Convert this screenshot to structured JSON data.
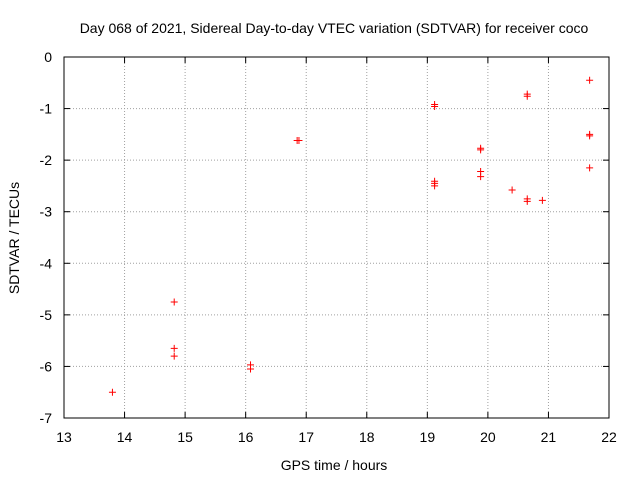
{
  "chart_data": {
    "type": "scatter",
    "title": "Day 068 of 2021, Sidereal Day-to-day VTEC variation (SDTVAR) for receiver coco",
    "xlabel": "GPS time / hours",
    "ylabel": "SDTVAR / TECUs",
    "xlim": [
      13,
      22
    ],
    "ylim": [
      -7,
      0
    ],
    "xticks": [
      13,
      14,
      15,
      16,
      17,
      18,
      19,
      20,
      21,
      22
    ],
    "yticks": [
      0,
      -1,
      -2,
      -3,
      -4,
      -5,
      -6,
      -7
    ],
    "xtick_labels": [
      "13",
      "14",
      "15",
      "16",
      "17",
      "18",
      "19",
      "20",
      "21",
      "22"
    ],
    "ytick_labels": [
      "0",
      "-1",
      "-2",
      "-3",
      "-4",
      "-5",
      "-6",
      "-7"
    ],
    "grid": true,
    "marker": "+",
    "colors": {
      "points": "#ff0000",
      "grid": "#a0a0a0",
      "axes": "#000000"
    },
    "series": [
      {
        "name": "SDTVAR",
        "x": [
          13.8,
          14.82,
          14.82,
          14.82,
          16.08,
          16.08,
          16.85,
          16.88,
          19.12,
          19.12,
          19.12,
          19.12,
          19.12,
          19.88,
          19.88,
          19.88,
          19.88,
          20.4,
          20.65,
          20.65,
          20.65,
          20.65,
          20.9,
          21.68,
          21.68,
          21.68,
          21.68
        ],
        "y": [
          -6.5,
          -4.75,
          -5.65,
          -5.8,
          -5.97,
          -6.05,
          -1.62,
          -1.62,
          -0.92,
          -0.96,
          -2.41,
          -2.45,
          -2.5,
          -1.77,
          -1.8,
          -2.22,
          -2.32,
          -2.58,
          -0.72,
          -0.76,
          -2.75,
          -2.8,
          -2.78,
          -0.45,
          -1.5,
          -1.53,
          -2.15
        ]
      }
    ]
  }
}
